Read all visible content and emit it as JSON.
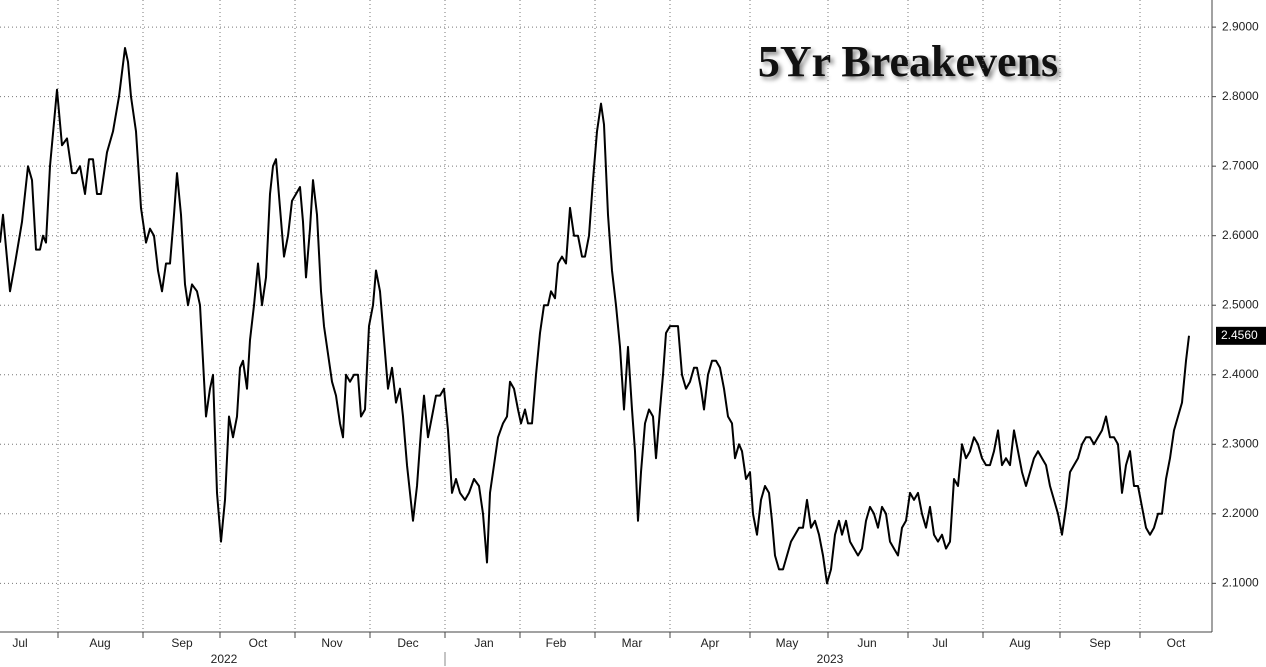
{
  "chart_data": {
    "type": "line",
    "title": "5Yr Breakevens",
    "x": [
      0,
      3,
      10,
      15,
      22,
      28,
      32,
      36,
      40,
      43,
      46,
      50,
      57,
      62,
      67,
      72,
      76,
      80,
      85,
      89,
      93,
      97,
      101,
      107,
      113,
      119,
      125,
      128,
      131,
      136,
      141,
      146,
      150,
      154,
      158,
      162,
      166,
      170,
      174,
      177,
      181,
      185,
      188,
      192,
      197,
      200,
      203,
      206,
      210,
      213,
      217,
      221,
      225,
      229,
      233,
      237,
      240,
      243,
      247,
      250,
      254,
      258,
      262,
      266,
      270,
      273,
      276,
      280,
      284,
      288,
      292,
      296,
      300,
      303,
      306,
      310,
      313,
      317,
      321,
      324,
      328,
      332,
      336,
      340,
      343,
      346,
      350,
      354,
      358,
      361,
      365,
      369,
      373,
      376,
      380,
      384,
      388,
      392,
      396,
      400,
      403,
      407,
      413,
      417,
      421,
      424,
      428,
      432,
      436,
      440,
      444,
      448,
      452,
      456,
      460,
      465,
      469,
      474,
      479,
      483,
      487,
      490,
      494,
      498,
      503,
      507,
      510,
      514,
      518,
      521,
      525,
      528,
      532,
      536,
      540,
      544,
      548,
      551,
      555,
      558,
      562,
      566,
      570,
      574,
      578,
      582,
      585,
      589,
      593,
      597,
      601,
      604,
      608,
      612,
      616,
      620,
      624,
      628,
      632,
      635,
      638,
      641,
      645,
      649,
      653,
      656,
      660,
      663,
      666,
      670,
      674,
      678,
      682,
      686,
      690,
      694,
      697,
      701,
      704,
      708,
      712,
      716,
      720,
      724,
      728,
      732,
      735,
      739,
      742,
      746,
      750,
      753,
      757,
      761,
      765,
      769,
      772,
      775,
      779,
      783,
      787,
      791,
      795,
      799,
      803,
      807,
      811,
      815,
      819,
      823,
      827,
      831,
      835,
      839,
      842,
      846,
      850,
      854,
      858,
      862,
      866,
      870,
      874,
      878,
      882,
      886,
      890,
      894,
      898,
      902,
      906,
      910,
      914,
      918,
      922,
      926,
      930,
      934,
      938,
      942,
      946,
      950,
      954,
      958,
      962,
      966,
      970,
      974,
      978,
      982,
      986,
      990,
      994,
      998,
      1002,
      1006,
      1010,
      1014,
      1018,
      1022,
      1026,
      1030,
      1034,
      1038,
      1042,
      1046,
      1050,
      1054,
      1058,
      1062,
      1066,
      1070,
      1074,
      1078,
      1082,
      1086,
      1090,
      1094,
      1098,
      1102,
      1106,
      1110,
      1114,
      1118,
      1122,
      1126,
      1130,
      1134,
      1138,
      1142,
      1146,
      1150,
      1154,
      1158,
      1162,
      1166,
      1170,
      1174,
      1178,
      1182,
      1186,
      1189
    ],
    "values": [
      2.59,
      2.63,
      2.52,
      2.56,
      2.62,
      2.7,
      2.68,
      2.58,
      2.58,
      2.6,
      2.59,
      2.7,
      2.81,
      2.73,
      2.74,
      2.69,
      2.69,
      2.7,
      2.66,
      2.71,
      2.71,
      2.66,
      2.66,
      2.72,
      2.75,
      2.8,
      2.87,
      2.85,
      2.8,
      2.75,
      2.64,
      2.59,
      2.61,
      2.6,
      2.55,
      2.52,
      2.56,
      2.56,
      2.63,
      2.69,
      2.63,
      2.53,
      2.5,
      2.53,
      2.52,
      2.5,
      2.42,
      2.34,
      2.38,
      2.4,
      2.23,
      2.16,
      2.22,
      2.34,
      2.31,
      2.34,
      2.41,
      2.42,
      2.38,
      2.45,
      2.5,
      2.56,
      2.5,
      2.54,
      2.66,
      2.7,
      2.71,
      2.64,
      2.57,
      2.6,
      2.65,
      2.66,
      2.67,
      2.62,
      2.54,
      2.61,
      2.68,
      2.63,
      2.52,
      2.47,
      2.43,
      2.39,
      2.37,
      2.33,
      2.31,
      2.4,
      2.39,
      2.4,
      2.4,
      2.34,
      2.35,
      2.47,
      2.5,
      2.55,
      2.52,
      2.45,
      2.38,
      2.41,
      2.36,
      2.38,
      2.34,
      2.27,
      2.19,
      2.24,
      2.32,
      2.37,
      2.31,
      2.34,
      2.37,
      2.37,
      2.38,
      2.32,
      2.23,
      2.25,
      2.23,
      2.22,
      2.23,
      2.25,
      2.24,
      2.2,
      2.13,
      2.23,
      2.27,
      2.31,
      2.33,
      2.34,
      2.39,
      2.38,
      2.35,
      2.33,
      2.35,
      2.33,
      2.33,
      2.4,
      2.46,
      2.5,
      2.5,
      2.52,
      2.51,
      2.56,
      2.57,
      2.56,
      2.64,
      2.6,
      2.6,
      2.57,
      2.57,
      2.6,
      2.68,
      2.75,
      2.79,
      2.76,
      2.63,
      2.55,
      2.5,
      2.44,
      2.35,
      2.44,
      2.35,
      2.29,
      2.19,
      2.26,
      2.33,
      2.35,
      2.34,
      2.28,
      2.35,
      2.4,
      2.46,
      2.47,
      2.47,
      2.47,
      2.4,
      2.38,
      2.39,
      2.41,
      2.41,
      2.38,
      2.35,
      2.4,
      2.42,
      2.42,
      2.41,
      2.38,
      2.34,
      2.33,
      2.28,
      2.3,
      2.29,
      2.25,
      2.26,
      2.2,
      2.17,
      2.22,
      2.24,
      2.23,
      2.19,
      2.14,
      2.12,
      2.12,
      2.14,
      2.16,
      2.17,
      2.18,
      2.18,
      2.22,
      2.18,
      2.19,
      2.17,
      2.14,
      2.1,
      2.12,
      2.17,
      2.19,
      2.17,
      2.19,
      2.16,
      2.15,
      2.14,
      2.15,
      2.19,
      2.21,
      2.2,
      2.18,
      2.21,
      2.2,
      2.16,
      2.15,
      2.14,
      2.18,
      2.19,
      2.23,
      2.22,
      2.23,
      2.2,
      2.18,
      2.21,
      2.17,
      2.16,
      2.17,
      2.15,
      2.16,
      2.25,
      2.24,
      2.3,
      2.28,
      2.29,
      2.31,
      2.3,
      2.28,
      2.27,
      2.27,
      2.29,
      2.32,
      2.27,
      2.28,
      2.27,
      2.32,
      2.29,
      2.26,
      2.24,
      2.26,
      2.28,
      2.29,
      2.28,
      2.27,
      2.24,
      2.22,
      2.2,
      2.17,
      2.21,
      2.26,
      2.27,
      2.28,
      2.3,
      2.31,
      2.31,
      2.3,
      2.31,
      2.32,
      2.34,
      2.31,
      2.31,
      2.3,
      2.23,
      2.27,
      2.29,
      2.24,
      2.24,
      2.21,
      2.18,
      2.17,
      2.18,
      2.2,
      2.2,
      2.25,
      2.28,
      2.32,
      2.34,
      2.36,
      2.42,
      2.456
    ],
    "last_value_label": "2.4560",
    "color": "#000000",
    "xlim": [
      0,
      1212
    ],
    "ylim": [
      2.03,
      2.939
    ],
    "yticks": [
      {
        "value": 2.1,
        "label": "2.1000"
      },
      {
        "value": 2.2,
        "label": "2.2000"
      },
      {
        "value": 2.3,
        "label": "2.3000"
      },
      {
        "value": 2.4,
        "label": "2.4000"
      },
      {
        "value": 2.5,
        "label": "2.5000"
      },
      {
        "value": 2.6,
        "label": "2.6000"
      },
      {
        "value": 2.7,
        "label": "2.7000"
      },
      {
        "value": 2.8,
        "label": "2.8000"
      },
      {
        "value": 2.9,
        "label": "2.9000"
      }
    ],
    "xticks": [
      {
        "value": 20,
        "label": "Jul"
      },
      {
        "value": 100,
        "label": "Aug"
      },
      {
        "value": 182,
        "label": "Sep"
      },
      {
        "value": 258,
        "label": "Oct"
      },
      {
        "value": 332,
        "label": "Nov"
      },
      {
        "value": 408,
        "label": "Dec"
      },
      {
        "value": 484,
        "label": "Jan"
      },
      {
        "value": 556,
        "label": "Feb"
      },
      {
        "value": 632,
        "label": "Mar"
      },
      {
        "value": 710,
        "label": "Apr"
      },
      {
        "value": 787,
        "label": "May"
      },
      {
        "value": 867,
        "label": "Jun"
      },
      {
        "value": 940,
        "label": "Jul"
      },
      {
        "value": 1020,
        "label": "Aug"
      },
      {
        "value": 1100,
        "label": "Sep"
      },
      {
        "value": 1176,
        "label": "Oct"
      }
    ],
    "xgrid": [
      58,
      143,
      220,
      295,
      370,
      445,
      520,
      595,
      670,
      750,
      828,
      908,
      983,
      1060,
      1140
    ],
    "years": [
      {
        "value": 224,
        "label": "2022"
      },
      {
        "value": 830,
        "label": "2023"
      }
    ],
    "grid": true
  }
}
